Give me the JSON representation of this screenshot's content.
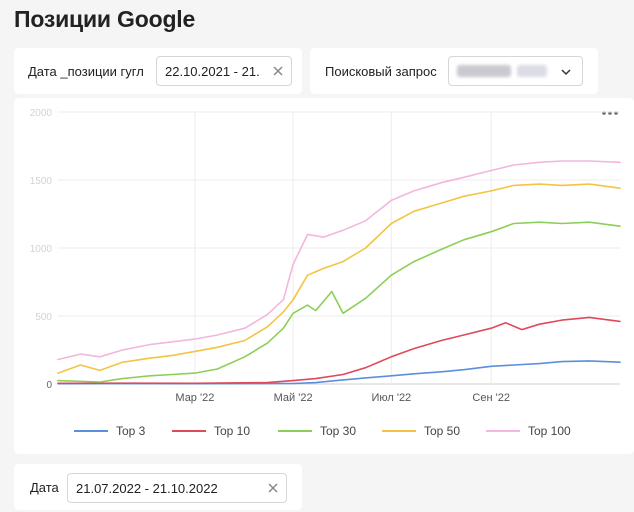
{
  "page": {
    "title": "Позиции Google"
  },
  "filters": {
    "date_positions": {
      "label": "Дата _позиции гугл",
      "value": "22.10.2021 - 21."
    },
    "search_query": {
      "label": "Поисковый запрос"
    },
    "date": {
      "label": "Дата",
      "value": "21.07.2022 - 21.10.2022"
    }
  },
  "icons": {
    "clear": "close-icon",
    "dropdown": "chevron-down-icon",
    "menu": "more-horizontal-icon"
  },
  "chart_data": {
    "type": "line",
    "title": "",
    "xlabel": "",
    "ylabel": "",
    "x_range": [
      "2021-12-06",
      "2022-11-20"
    ],
    "ylim": [
      0,
      2000
    ],
    "y_ticks": [
      "0",
      "500",
      "1000",
      "1500",
      "2000"
    ],
    "x_ticks": [
      {
        "label": "Мар '22",
        "date": "2022-03-01"
      },
      {
        "label": "Май '22",
        "date": "2022-05-01"
      },
      {
        "label": "Июл '22",
        "date": "2022-07-01"
      },
      {
        "label": "Сен '22",
        "date": "2022-09-01"
      }
    ],
    "grid": true,
    "legend_position": "bottom",
    "series": [
      {
        "name": "Top 3",
        "color": "#5b8fdc",
        "points": [
          [
            "2021-12-06",
            2
          ],
          [
            "2022-01-15",
            3
          ],
          [
            "2022-03-01",
            2
          ],
          [
            "2022-04-15",
            3
          ],
          [
            "2022-05-01",
            4
          ],
          [
            "2022-05-15",
            10
          ],
          [
            "2022-06-01",
            30
          ],
          [
            "2022-06-15",
            45
          ],
          [
            "2022-07-01",
            60
          ],
          [
            "2022-07-15",
            75
          ],
          [
            "2022-08-01",
            90
          ],
          [
            "2022-08-15",
            105
          ],
          [
            "2022-09-01",
            130
          ],
          [
            "2022-09-15",
            140
          ],
          [
            "2022-10-01",
            150
          ],
          [
            "2022-10-15",
            165
          ],
          [
            "2022-11-01",
            170
          ],
          [
            "2022-11-20",
            160
          ]
        ]
      },
      {
        "name": "Top 10",
        "color": "#e0485c",
        "points": [
          [
            "2021-12-06",
            5
          ],
          [
            "2022-01-15",
            6
          ],
          [
            "2022-03-01",
            5
          ],
          [
            "2022-04-15",
            10
          ],
          [
            "2022-05-01",
            25
          ],
          [
            "2022-05-15",
            40
          ],
          [
            "2022-06-01",
            70
          ],
          [
            "2022-06-15",
            120
          ],
          [
            "2022-07-01",
            200
          ],
          [
            "2022-07-15",
            260
          ],
          [
            "2022-08-01",
            320
          ],
          [
            "2022-08-15",
            360
          ],
          [
            "2022-09-01",
            410
          ],
          [
            "2022-09-10",
            450
          ],
          [
            "2022-09-20",
            400
          ],
          [
            "2022-10-01",
            440
          ],
          [
            "2022-10-15",
            470
          ],
          [
            "2022-11-01",
            490
          ],
          [
            "2022-11-20",
            460
          ]
        ]
      },
      {
        "name": "Top 30",
        "color": "#8ccf58",
        "points": [
          [
            "2021-12-06",
            25
          ],
          [
            "2022-01-01",
            15
          ],
          [
            "2022-01-15",
            40
          ],
          [
            "2022-02-01",
            60
          ],
          [
            "2022-02-15",
            70
          ],
          [
            "2022-03-01",
            80
          ],
          [
            "2022-03-15",
            110
          ],
          [
            "2022-04-01",
            200
          ],
          [
            "2022-04-15",
            300
          ],
          [
            "2022-04-25",
            410
          ],
          [
            "2022-05-01",
            520
          ],
          [
            "2022-05-10",
            580
          ],
          [
            "2022-05-15",
            540
          ],
          [
            "2022-05-25",
            680
          ],
          [
            "2022-06-01",
            520
          ],
          [
            "2022-06-15",
            630
          ],
          [
            "2022-07-01",
            800
          ],
          [
            "2022-07-15",
            900
          ],
          [
            "2022-08-01",
            990
          ],
          [
            "2022-08-15",
            1060
          ],
          [
            "2022-09-01",
            1120
          ],
          [
            "2022-09-15",
            1180
          ],
          [
            "2022-10-01",
            1190
          ],
          [
            "2022-10-15",
            1180
          ],
          [
            "2022-11-01",
            1190
          ],
          [
            "2022-11-20",
            1160
          ]
        ]
      },
      {
        "name": "Top 50",
        "color": "#f3c443",
        "points": [
          [
            "2021-12-06",
            80
          ],
          [
            "2021-12-20",
            140
          ],
          [
            "2022-01-01",
            100
          ],
          [
            "2022-01-15",
            160
          ],
          [
            "2022-02-01",
            190
          ],
          [
            "2022-02-15",
            210
          ],
          [
            "2022-03-01",
            240
          ],
          [
            "2022-03-15",
            270
          ],
          [
            "2022-04-01",
            320
          ],
          [
            "2022-04-15",
            420
          ],
          [
            "2022-04-25",
            530
          ],
          [
            "2022-05-01",
            620
          ],
          [
            "2022-05-10",
            800
          ],
          [
            "2022-05-20",
            850
          ],
          [
            "2022-06-01",
            900
          ],
          [
            "2022-06-15",
            1000
          ],
          [
            "2022-07-01",
            1180
          ],
          [
            "2022-07-15",
            1270
          ],
          [
            "2022-08-01",
            1330
          ],
          [
            "2022-08-15",
            1380
          ],
          [
            "2022-09-01",
            1420
          ],
          [
            "2022-09-15",
            1460
          ],
          [
            "2022-10-01",
            1470
          ],
          [
            "2022-10-15",
            1460
          ],
          [
            "2022-11-01",
            1470
          ],
          [
            "2022-11-20",
            1440
          ]
        ]
      },
      {
        "name": "Top 100",
        "color": "#f3b6df",
        "points": [
          [
            "2021-12-06",
            180
          ],
          [
            "2021-12-20",
            220
          ],
          [
            "2022-01-01",
            200
          ],
          [
            "2022-01-15",
            250
          ],
          [
            "2022-02-01",
            290
          ],
          [
            "2022-02-15",
            310
          ],
          [
            "2022-03-01",
            330
          ],
          [
            "2022-03-15",
            360
          ],
          [
            "2022-04-01",
            410
          ],
          [
            "2022-04-15",
            510
          ],
          [
            "2022-04-25",
            620
          ],
          [
            "2022-05-01",
            880
          ],
          [
            "2022-05-10",
            1100
          ],
          [
            "2022-05-20",
            1080
          ],
          [
            "2022-06-01",
            1130
          ],
          [
            "2022-06-15",
            1200
          ],
          [
            "2022-07-01",
            1350
          ],
          [
            "2022-07-15",
            1420
          ],
          [
            "2022-08-01",
            1480
          ],
          [
            "2022-08-15",
            1520
          ],
          [
            "2022-09-01",
            1570
          ],
          [
            "2022-09-15",
            1610
          ],
          [
            "2022-10-01",
            1630
          ],
          [
            "2022-10-15",
            1640
          ],
          [
            "2022-11-01",
            1640
          ],
          [
            "2022-11-20",
            1630
          ]
        ]
      }
    ]
  }
}
